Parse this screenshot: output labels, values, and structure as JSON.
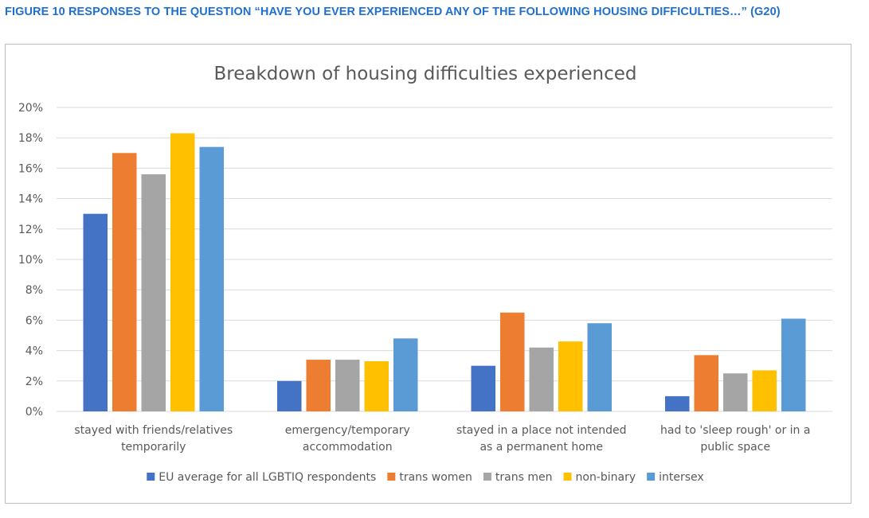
{
  "figure_caption": "FIGURE 10 RESPONSES TO THE QUESTION “HAVE YOU EVER EXPERIENCED ANY OF THE FOLLOWING HOUSING DIFFICULTIES…” (G20)",
  "chart_data": {
    "type": "bar",
    "title": "Breakdown of housing difficulties experienced",
    "xlabel": "",
    "ylabel": "",
    "ylim": [
      0,
      20
    ],
    "y_ticks": [
      "0%",
      "2%",
      "4%",
      "6%",
      "8%",
      "10%",
      "12%",
      "14%",
      "16%",
      "18%",
      "20%"
    ],
    "y_unit": "%",
    "grid": true,
    "legend_position": "bottom",
    "categories": [
      [
        "stayed with friends/relatives",
        "temporarily"
      ],
      [
        "emergency/temporary",
        "accommodation"
      ],
      [
        "stayed in a place not intended",
        "as a permanent home"
      ],
      [
        "had to 'sleep rough' or in a",
        "public space"
      ]
    ],
    "series": [
      {
        "name": "EU average for all LGBTIQ respondents",
        "color": "#4472c4",
        "values": [
          13.0,
          2.0,
          3.0,
          1.0
        ]
      },
      {
        "name": "trans women",
        "color": "#ed7d31",
        "values": [
          17.0,
          3.4,
          6.5,
          3.7
        ]
      },
      {
        "name": "trans men",
        "color": "#a5a5a5",
        "values": [
          15.6,
          3.4,
          4.2,
          2.5
        ]
      },
      {
        "name": "non-binary",
        "color": "#ffc000",
        "values": [
          18.3,
          3.3,
          4.6,
          2.7
        ]
      },
      {
        "name": "intersex",
        "color": "#5b9bd5",
        "values": [
          17.4,
          4.8,
          5.8,
          6.1
        ]
      }
    ]
  }
}
